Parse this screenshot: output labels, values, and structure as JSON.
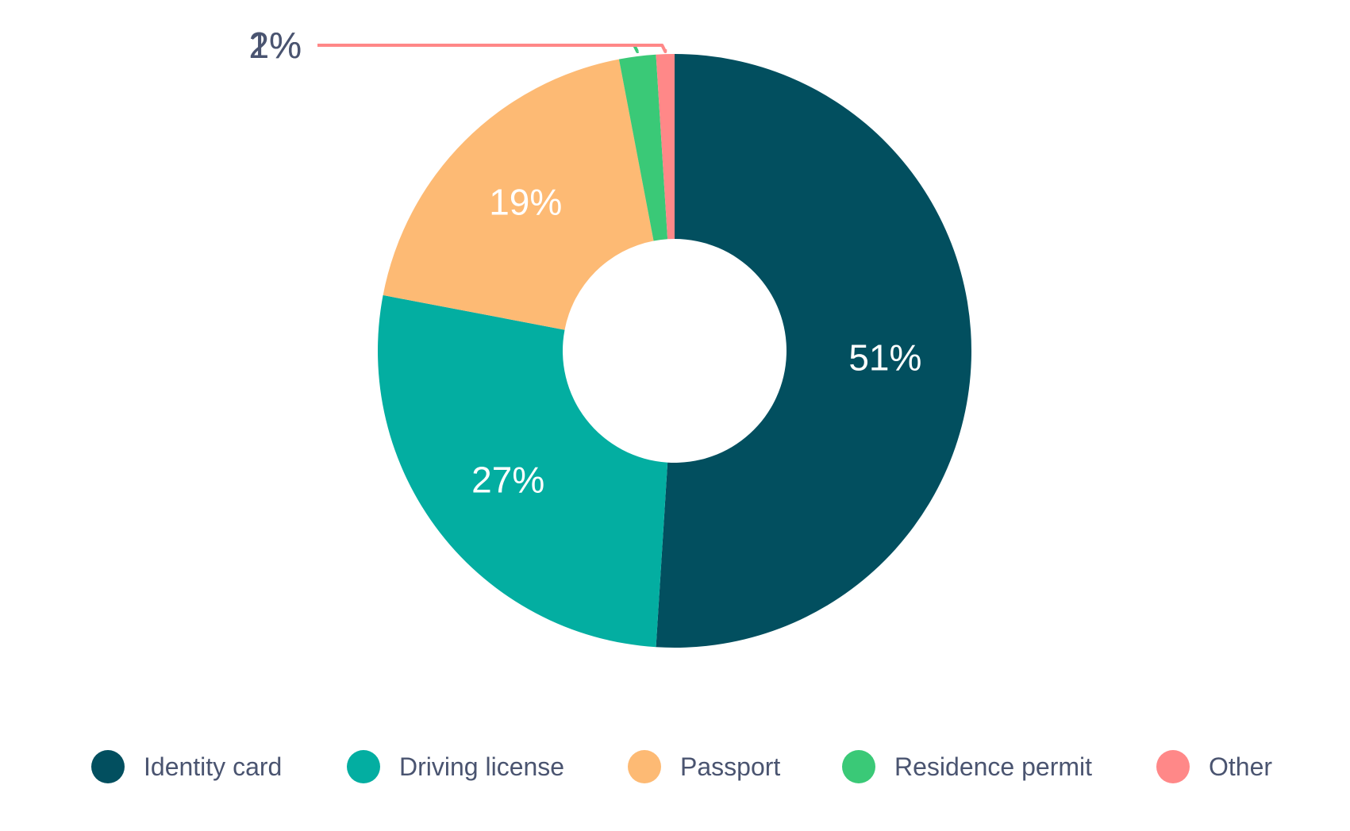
{
  "chart_data": {
    "type": "pie",
    "donut": true,
    "title": "",
    "series": [
      {
        "name": "Identity card",
        "value": 51,
        "label": "51%",
        "color": "#024F5F"
      },
      {
        "name": "Driving license",
        "value": 27,
        "label": "27%",
        "color": "#03AEA1"
      },
      {
        "name": "Passport",
        "value": 19,
        "label": "19%",
        "color": "#FDBA74"
      },
      {
        "name": "Residence permit",
        "value": 2,
        "label": "2%",
        "color": "#3AC977"
      },
      {
        "name": "Other",
        "value": 1,
        "label": "1%",
        "color": "#FF8888"
      }
    ],
    "legend_position": "bottom",
    "label_text_color": "#ffffff",
    "callout_text_color": "#4A5470",
    "legend_text_color": "#4A5470"
  }
}
